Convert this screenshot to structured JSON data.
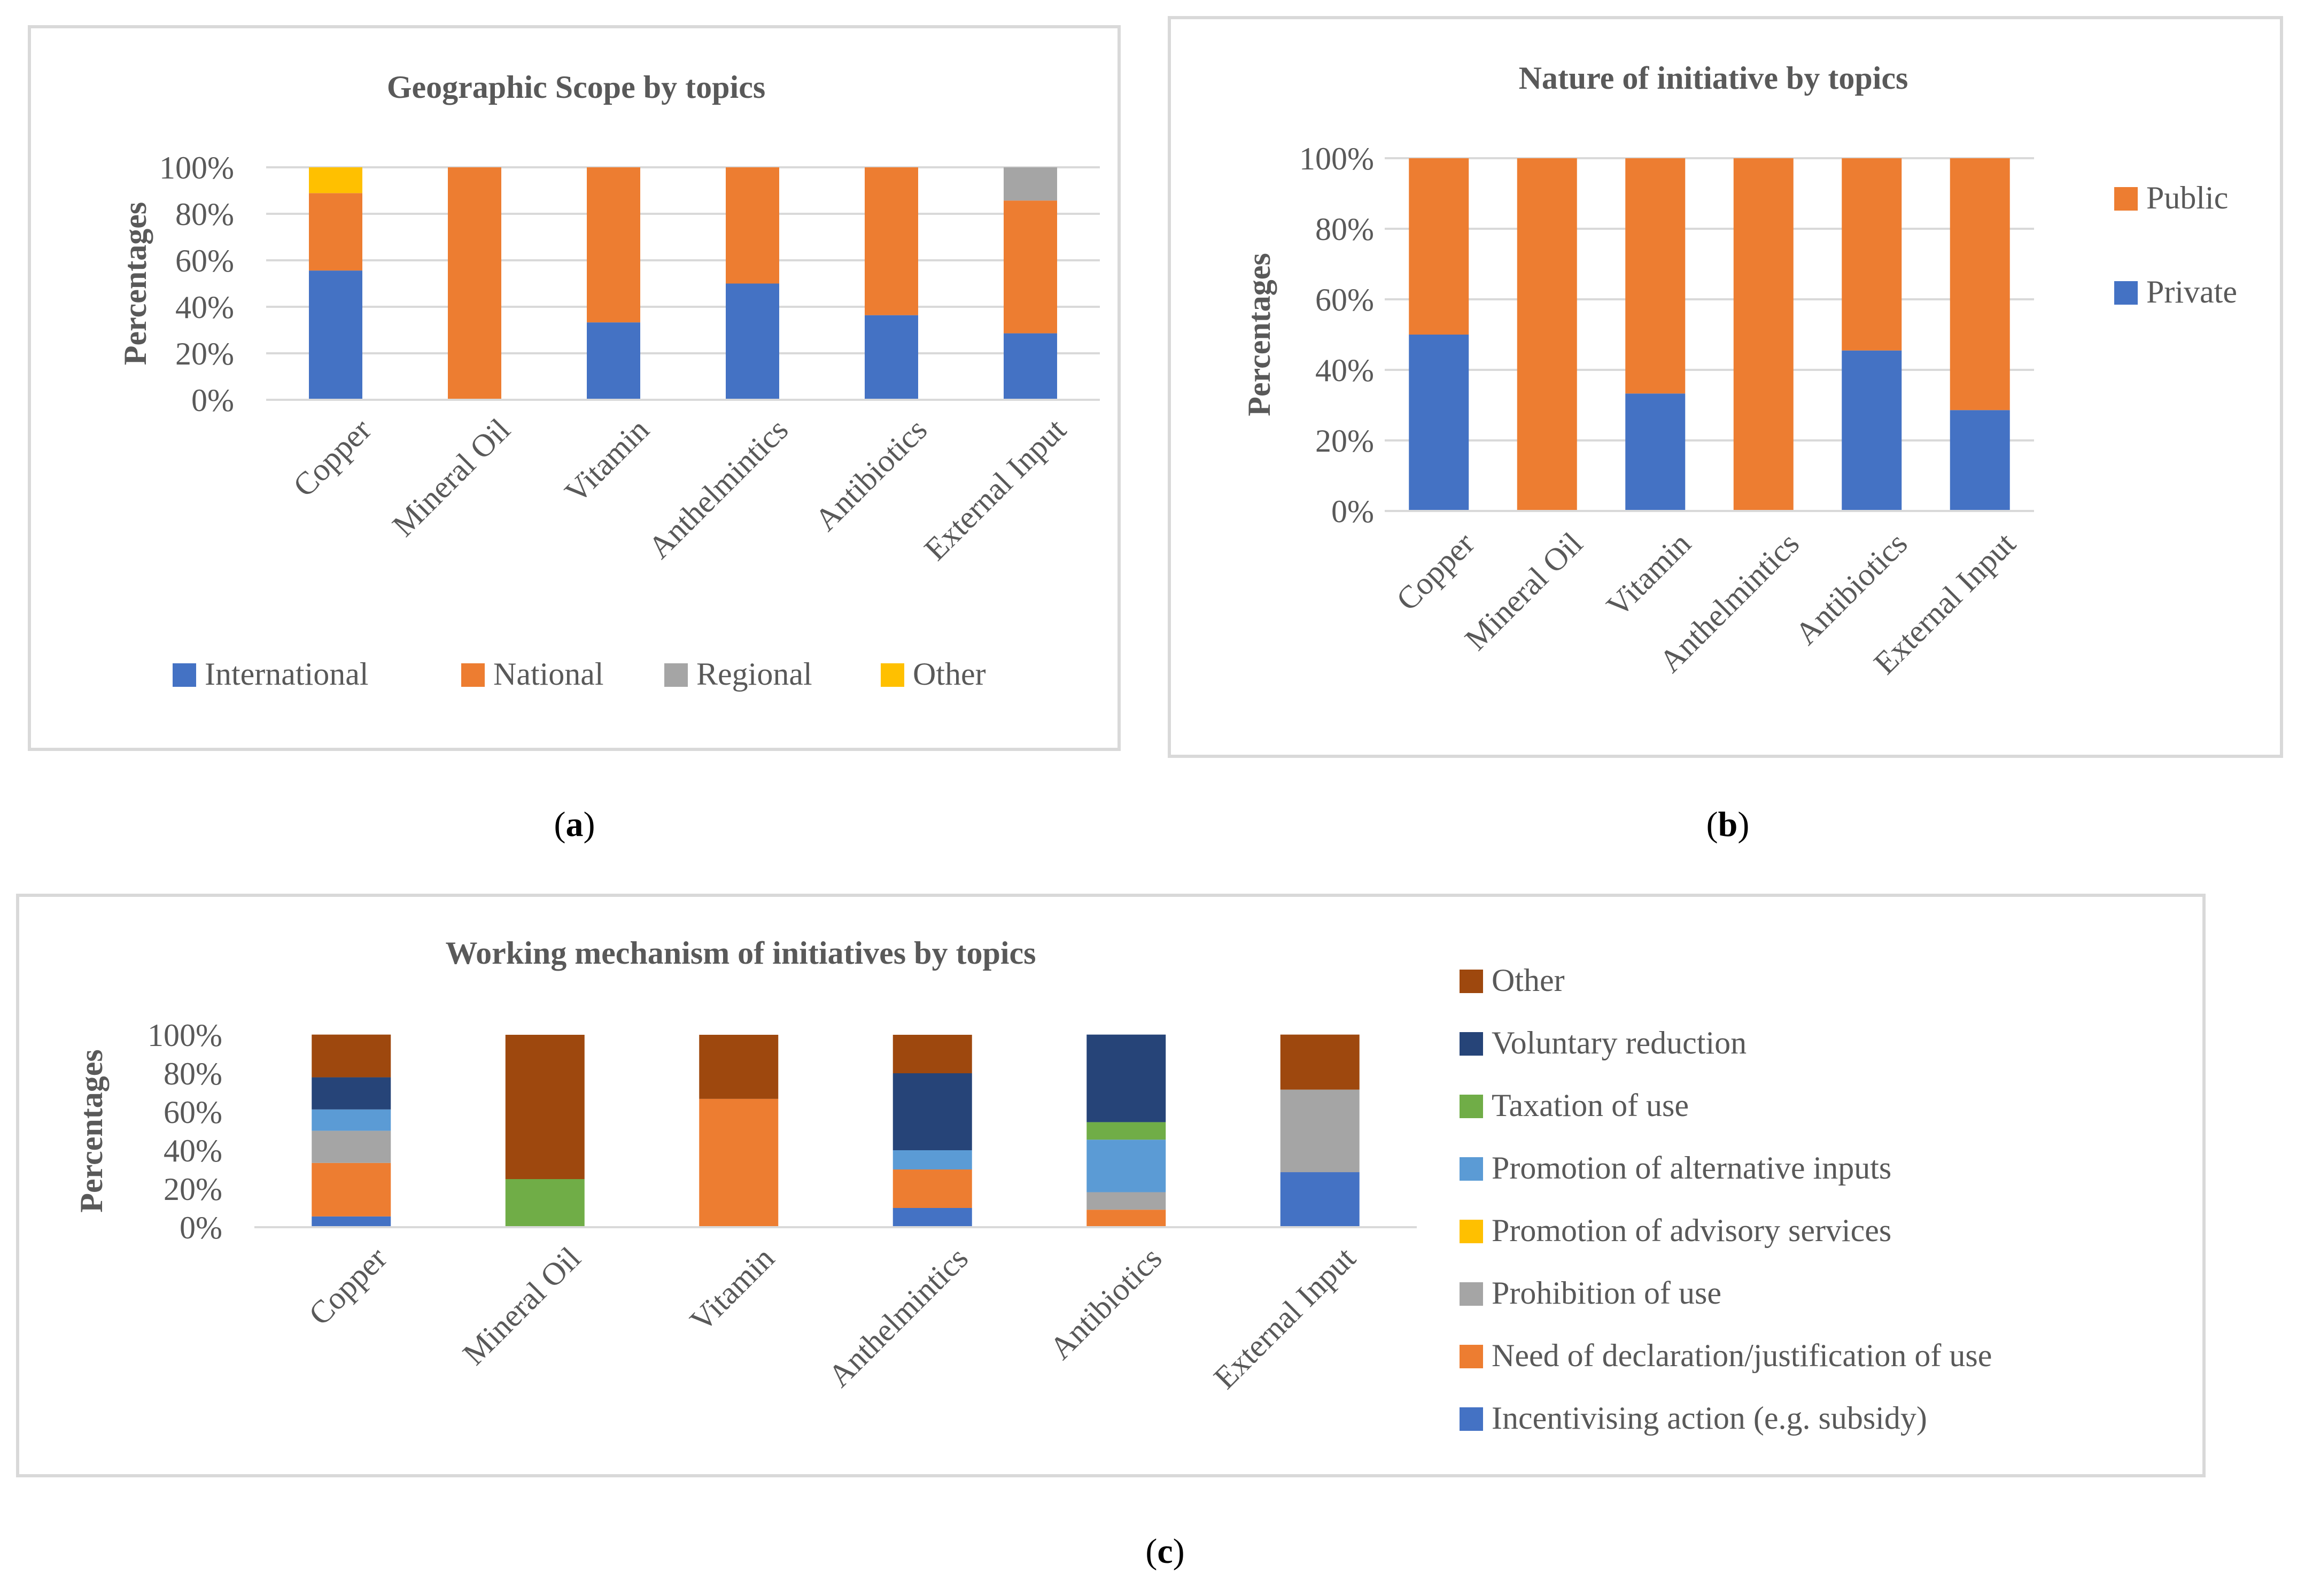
{
  "captions": {
    "a": {
      "open": "(",
      "letter": "a",
      "close": ")"
    },
    "b": {
      "open": "(",
      "letter": "b",
      "close": ")"
    },
    "c": {
      "open": "(",
      "letter": "c",
      "close": ")"
    }
  },
  "chart_data": [
    {
      "id": "a",
      "type": "bar",
      "stacked": true,
      "title": "Geographic Scope by topics",
      "xlabel": "",
      "ylabel": "Percentages",
      "ylim": [
        0,
        100
      ],
      "yticks": [
        "0%",
        "20%",
        "40%",
        "60%",
        "80%",
        "100%"
      ],
      "grid": true,
      "legend_position": "bottom",
      "categories": [
        "Copper",
        "Mineral Oil",
        "Vitamin",
        "Anthelmintics",
        "Antibiotics",
        "External Input"
      ],
      "series": [
        {
          "name": "International",
          "color": "#4472c4",
          "values": [
            55.6,
            0,
            33.3,
            50,
            36.4,
            28.6
          ]
        },
        {
          "name": "National",
          "color": "#ed7d31",
          "values": [
            33.3,
            100,
            66.7,
            50,
            63.6,
            57.1
          ]
        },
        {
          "name": "Regional",
          "color": "#a5a5a5",
          "values": [
            0,
            0,
            0,
            0,
            0,
            14.3
          ]
        },
        {
          "name": "Other",
          "color": "#ffc000",
          "values": [
            11.1,
            0,
            0,
            0,
            0,
            0
          ]
        }
      ]
    },
    {
      "id": "b",
      "type": "bar",
      "stacked": true,
      "title": "Nature of initiative by topics",
      "xlabel": "",
      "ylabel": "Percentages",
      "ylim": [
        0,
        100
      ],
      "yticks": [
        "0%",
        "20%",
        "40%",
        "60%",
        "80%",
        "100%"
      ],
      "grid": true,
      "legend_position": "right",
      "categories": [
        "Copper",
        "Mineral Oil",
        "Vitamin",
        "Anthelmintics",
        "Antibiotics",
        "External Input"
      ],
      "series": [
        {
          "name": "Private",
          "color": "#4472c4",
          "values": [
            50,
            0,
            33.3,
            0,
            45.5,
            28.6
          ]
        },
        {
          "name": "Public",
          "color": "#ed7d31",
          "values": [
            50,
            100,
            66.7,
            100,
            54.5,
            71.4
          ]
        }
      ]
    },
    {
      "id": "c",
      "type": "bar",
      "stacked": true,
      "title": "Working mechanism of initiatives by topics",
      "xlabel": "",
      "ylabel": "Percentages",
      "ylim": [
        0,
        100
      ],
      "yticks": [
        "0%",
        "20%",
        "40%",
        "60%",
        "80%",
        "100%"
      ],
      "grid": false,
      "legend_position": "right",
      "categories": [
        "Copper",
        "Mineral Oil",
        "Vitamin",
        "Anthelmintics",
        "Antibiotics",
        "External Input"
      ],
      "series": [
        {
          "name": "Incentivising action (e.g. subsidy)",
          "color": "#4472c4",
          "values": [
            5.6,
            0,
            0,
            10,
            0,
            28.6
          ]
        },
        {
          "name": "Need of declaration/justification of use",
          "color": "#ed7d31",
          "values": [
            27.8,
            0,
            66.7,
            20,
            9.1,
            0
          ]
        },
        {
          "name": "Prohibition of use",
          "color": "#a5a5a5",
          "values": [
            16.7,
            0,
            0,
            0,
            9.1,
            42.9
          ]
        },
        {
          "name": "Promotion of advisory services",
          "color": "#ffc000",
          "values": [
            0,
            0,
            0,
            0,
            0,
            0
          ]
        },
        {
          "name": "Promotion of alternative inputs",
          "color": "#5b9bd5",
          "values": [
            11.1,
            0,
            0,
            10,
            27.3,
            0
          ]
        },
        {
          "name": "Taxation of use",
          "color": "#70ad47",
          "values": [
            0,
            25,
            0,
            0,
            9.1,
            0
          ]
        },
        {
          "name": "Voluntary reduction",
          "color": "#264478",
          "values": [
            16.7,
            0,
            0,
            40,
            45.5,
            0
          ]
        },
        {
          "name": "Other",
          "color": "#9e480e",
          "values": [
            22.2,
            75,
            33.3,
            20,
            0,
            28.6
          ]
        }
      ]
    }
  ]
}
